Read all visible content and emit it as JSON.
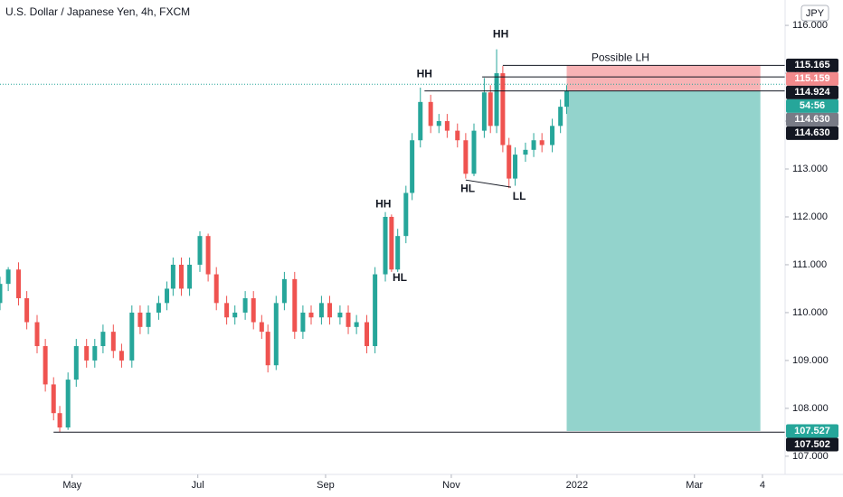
{
  "chart_data": {
    "type": "candlestick",
    "title": "U.S. Dollar / Japanese Yen, 4h, FXCM",
    "currency": "JPY",
    "up_color": "#26a69a",
    "down_color": "#ef5350",
    "xlim": [
      -35,
      346
    ],
    "ylim": [
      106.62,
      116.53
    ],
    "xticks": [
      {
        "value": 0,
        "label": "May"
      },
      {
        "value": 61,
        "label": "Jul"
      },
      {
        "value": 123,
        "label": "Sep"
      },
      {
        "value": 184,
        "label": "Nov"
      },
      {
        "value": 245,
        "label": "2022"
      },
      {
        "value": 302,
        "label": "Mar"
      },
      {
        "value": 335,
        "label": "4"
      }
    ],
    "yticks": [
      {
        "value": 107,
        "label": "107.000"
      },
      {
        "value": 108,
        "label": "108.000"
      },
      {
        "value": 109,
        "label": "109.000"
      },
      {
        "value": 110,
        "label": "110.000"
      },
      {
        "value": 111,
        "label": "111.000"
      },
      {
        "value": 112,
        "label": "112.000"
      },
      {
        "value": 113,
        "label": "113.000"
      },
      {
        "value": 114,
        "label": "114.000"
      },
      {
        "value": 115,
        "label": "115.000"
      },
      {
        "value": 116,
        "label": "116.000"
      }
    ],
    "x": [
      -35,
      -31,
      -26,
      -22,
      -17,
      -13,
      -9,
      -6,
      -2,
      2,
      7,
      11,
      15,
      20,
      24,
      29,
      33,
      37,
      42,
      46,
      49,
      53,
      57,
      62,
      66,
      70,
      75,
      79,
      84,
      88,
      92,
      95,
      99,
      103,
      108,
      112,
      116,
      121,
      125,
      130,
      134,
      138,
      143,
      147,
      152,
      155,
      158,
      162,
      165,
      169,
      174,
      178,
      182,
      187,
      191,
      195,
      200,
      203,
      206,
      209,
      212,
      215,
      220,
      224,
      228,
      233,
      237,
      240
    ],
    "open": [
      110.2,
      110.6,
      110.9,
      110.3,
      109.8,
      109.3,
      108.5,
      107.9,
      107.6,
      108.6,
      109.3,
      109.0,
      109.3,
      109.6,
      109.2,
      109.0,
      110.0,
      109.7,
      110.0,
      110.2,
      110.5,
      111.0,
      110.5,
      111.0,
      111.6,
      110.8,
      110.2,
      109.9,
      110.0,
      110.3,
      109.8,
      109.6,
      108.9,
      110.2,
      110.7,
      109.6,
      110.0,
      109.9,
      110.2,
      109.9,
      110.0,
      109.7,
      109.8,
      109.3,
      110.8,
      112.0,
      110.9,
      111.6,
      112.5,
      113.6,
      114.4,
      113.9,
      114.0,
      113.8,
      113.6,
      112.9,
      113.8,
      114.6,
      113.9,
      115.0,
      113.5,
      112.8,
      113.3,
      113.4,
      113.6,
      113.5,
      113.9,
      114.3
    ],
    "high": [
      110.75,
      110.95,
      111.05,
      110.45,
      109.95,
      109.45,
      108.65,
      108.05,
      108.75,
      109.45,
      109.45,
      109.45,
      109.75,
      109.75,
      109.35,
      110.15,
      110.15,
      110.15,
      110.35,
      110.65,
      111.15,
      111.15,
      111.15,
      111.7,
      111.65,
      110.95,
      110.35,
      110.15,
      110.45,
      110.45,
      109.95,
      109.75,
      110.35,
      110.85,
      110.85,
      110.15,
      110.15,
      110.35,
      110.35,
      110.15,
      110.15,
      109.95,
      109.95,
      110.95,
      112.1,
      112.05,
      111.75,
      112.65,
      113.75,
      114.7,
      114.55,
      114.15,
      114.15,
      113.95,
      113.75,
      113.95,
      114.9,
      114.75,
      115.5,
      115.15,
      113.65,
      113.45,
      113.55,
      113.75,
      113.75,
      114.05,
      114.45,
      114.75
    ],
    "low": [
      110.05,
      110.45,
      110.15,
      109.65,
      109.15,
      108.35,
      107.75,
      107.5,
      107.55,
      108.45,
      108.85,
      108.85,
      109.15,
      109.05,
      108.85,
      108.85,
      109.55,
      109.55,
      109.85,
      110.05,
      110.35,
      110.35,
      110.35,
      110.85,
      110.65,
      110.05,
      109.75,
      109.75,
      109.85,
      109.65,
      109.45,
      108.75,
      108.8,
      110.05,
      109.45,
      109.45,
      109.75,
      109.75,
      109.75,
      109.75,
      109.55,
      109.55,
      109.15,
      109.15,
      110.65,
      110.85,
      110.85,
      111.45,
      112.35,
      113.45,
      113.75,
      113.75,
      113.65,
      113.45,
      112.8,
      112.85,
      113.65,
      113.75,
      113.75,
      113.35,
      112.6,
      112.65,
      113.15,
      113.25,
      113.35,
      113.35,
      113.75,
      114.15
    ],
    "close": [
      110.6,
      110.9,
      110.3,
      109.8,
      109.3,
      108.5,
      107.9,
      107.6,
      108.6,
      109.3,
      109.0,
      109.3,
      109.6,
      109.2,
      109.0,
      110.0,
      109.7,
      110.0,
      110.2,
      110.5,
      111.0,
      110.5,
      111.0,
      111.6,
      110.8,
      110.2,
      109.9,
      110.0,
      110.3,
      109.8,
      109.6,
      108.9,
      110.2,
      110.7,
      109.6,
      110.0,
      109.9,
      110.2,
      109.9,
      110.0,
      109.7,
      109.8,
      109.3,
      110.8,
      112.0,
      110.9,
      111.6,
      112.5,
      113.6,
      114.4,
      113.9,
      114.0,
      113.8,
      113.6,
      112.9,
      113.8,
      114.6,
      113.9,
      115.0,
      113.5,
      112.8,
      113.3,
      113.4,
      113.6,
      113.5,
      113.9,
      114.3,
      114.63
    ],
    "current_line": {
      "value": 114.77,
      "color": "#26a69a"
    },
    "position": {
      "x": [
        240,
        334
      ],
      "entry": 114.63,
      "stop": 115.165,
      "target": 107.527,
      "stop_color": "#f7b3b5",
      "target_color": "#93d3cc"
    },
    "levels": [
      {
        "value": 115.165,
        "from": 209
      },
      {
        "value": 114.924,
        "from": 199
      },
      {
        "value": 114.63,
        "from": 171
      },
      {
        "value": 107.502,
        "from": -9
      }
    ],
    "trendline": {
      "x": [
        191,
        213
      ],
      "y": [
        112.77,
        112.62
      ]
    },
    "annotations": [
      {
        "text": "HH",
        "x": 208,
        "y": 115.81
      },
      {
        "text": "HH",
        "x": 171,
        "y": 114.98
      },
      {
        "text": "HH",
        "x": 151,
        "y": 112.26
      },
      {
        "text": "HL",
        "x": 159,
        "y": 110.72
      },
      {
        "text": "HL",
        "x": 192,
        "y": 112.58
      },
      {
        "text": "LL",
        "x": 217,
        "y": 112.42
      },
      {
        "text": "Possible LH",
        "x": 252,
        "y": 115.32
      }
    ],
    "price_labels": [
      {
        "value": 115.165,
        "label": "115.165",
        "color": "#131722"
      },
      {
        "value": 115.159,
        "label": "115.159",
        "color": "#f28a8c"
      },
      {
        "value": 114.924,
        "label": "114.924",
        "color": "#131722"
      },
      {
        "value": 114.77,
        "label": "54:56",
        "color": "#26a69a"
      },
      {
        "value": 114.63,
        "label": "114.630",
        "color": "#787b86"
      },
      {
        "value": 114.63,
        "label": "114.630",
        "color": "#131722"
      },
      {
        "value": 107.527,
        "label": "107.527",
        "color": "#26a69a"
      },
      {
        "value": 107.502,
        "label": "107.502",
        "color": "#131722"
      }
    ]
  }
}
